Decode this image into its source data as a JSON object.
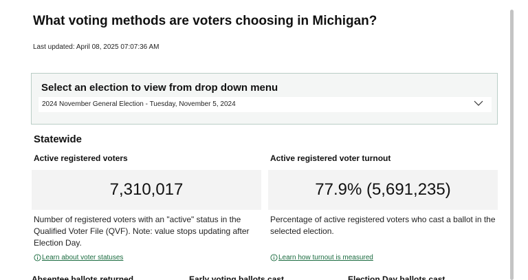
{
  "header": {
    "title": "What voting methods are voters choosing in Michigan?",
    "last_updated": "Last updated: April 08, 2025 07:07:36 AM"
  },
  "election_selector": {
    "heading": "Select an election to view from drop down menu",
    "selected_value": "2024 November General Election - Tuesday, November 5, 2024",
    "icon": "chevron-down-icon"
  },
  "statewide": {
    "title": "Statewide",
    "active_registered": {
      "label": "Active registered voters",
      "value": "7,310,017",
      "description": "Number of registered voters with an \"active\" status in the Qualified Voter File (QVF). Note: value stops updating after Election Day.",
      "link_text": "Learn about voter statuses",
      "icon": "info-icon"
    },
    "turnout": {
      "label": "Active registered voter turnout",
      "value": "77.9% (5,691,235)",
      "description": "Percentage of active registered voters who cast a ballot in the selected election.",
      "link_text": "Learn how turnout is measured",
      "icon": "info-icon"
    }
  },
  "bottom_row": {
    "labels": [
      "Absentee ballots returned",
      "Early voting ballots cast",
      "Election Day ballots cast"
    ]
  },
  "colors": {
    "link": "#1a6b3f",
    "panel_border": "#b9cdc6",
    "panel_bg": "#f4f6f5",
    "stat_box_bg": "#f3f3f3"
  }
}
